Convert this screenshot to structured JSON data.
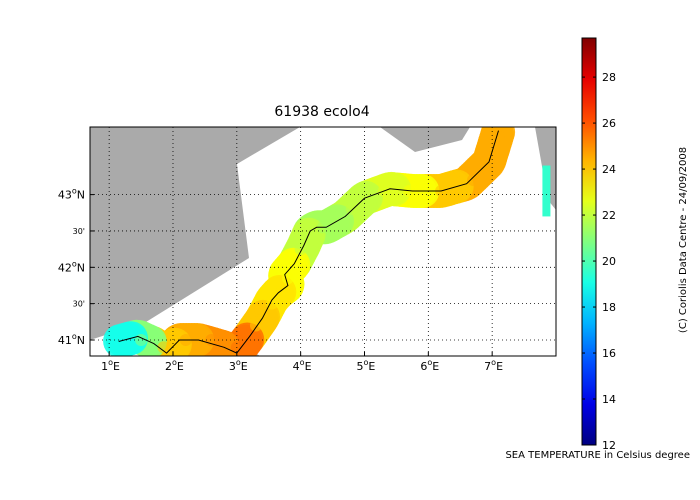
{
  "map": {
    "title": "61938 ecolo4",
    "lon_range": [
      0.7,
      8.0
    ],
    "lat_range": [
      40.78,
      43.93
    ],
    "lon_ticks": [
      {
        "value": 1,
        "deg": "1",
        "dir": "E"
      },
      {
        "value": 2,
        "deg": "2",
        "dir": "E"
      },
      {
        "value": 3,
        "deg": "3",
        "dir": "E"
      },
      {
        "value": 4,
        "deg": "4",
        "dir": "E"
      },
      {
        "value": 5,
        "deg": "5",
        "dir": "E"
      },
      {
        "value": 6,
        "deg": "6",
        "dir": "E"
      },
      {
        "value": 7,
        "deg": "7",
        "dir": "E"
      }
    ],
    "lat_ticks": [
      {
        "value": 43.0,
        "label": "43",
        "dir": "N",
        "minor": false
      },
      {
        "value": 42.5,
        "label": "30'",
        "dir": "",
        "minor": true
      },
      {
        "value": 42.0,
        "label": "42",
        "dir": "N",
        "minor": false
      },
      {
        "value": 41.5,
        "label": "30'",
        "dir": "",
        "minor": true
      },
      {
        "value": 41.0,
        "label": "41",
        "dir": "N",
        "minor": false
      }
    ],
    "colors": {
      "land": "#aaaaaa",
      "track": "#000000",
      "grid": "#000000"
    }
  },
  "colorbar": {
    "min": 12,
    "max": 29.7,
    "ticks": [
      "12",
      "14",
      "16",
      "18",
      "20",
      "22",
      "24",
      "26",
      "28"
    ],
    "tick_values": [
      12,
      14,
      16,
      18,
      20,
      22,
      24,
      26,
      28
    ],
    "colormap": "jet"
  },
  "credit": "(C) Coriolis Data Centre - 24/09/2008",
  "variable_label": "SEA TEMPERATURE in Celsius degree",
  "chart_data": {
    "type": "scatter",
    "title": "61938 ecolo4",
    "xlabel": "",
    "ylabel": "",
    "xlim": [
      0.7,
      8.0
    ],
    "ylim": [
      40.78,
      43.93
    ],
    "value_label": "SEA TEMPERATURE in Celsius degree",
    "track": [
      {
        "lon": 7.1,
        "lat": 43.88
      },
      {
        "lon": 6.95,
        "lat": 43.45
      },
      {
        "lon": 6.6,
        "lat": 43.15
      },
      {
        "lon": 6.2,
        "lat": 43.05
      },
      {
        "lon": 5.75,
        "lat": 43.05
      },
      {
        "lon": 5.4,
        "lat": 43.08
      },
      {
        "lon": 5.0,
        "lat": 42.95
      },
      {
        "lon": 4.7,
        "lat": 42.7
      },
      {
        "lon": 4.4,
        "lat": 42.55
      },
      {
        "lon": 4.25,
        "lat": 42.55
      },
      {
        "lon": 4.15,
        "lat": 42.5
      },
      {
        "lon": 4.05,
        "lat": 42.3
      },
      {
        "lon": 3.9,
        "lat": 42.05
      },
      {
        "lon": 3.75,
        "lat": 41.9
      },
      {
        "lon": 3.8,
        "lat": 41.75
      },
      {
        "lon": 3.65,
        "lat": 41.65
      },
      {
        "lon": 3.55,
        "lat": 41.55
      },
      {
        "lon": 3.4,
        "lat": 41.3
      },
      {
        "lon": 3.2,
        "lat": 41.05
      },
      {
        "lon": 3.0,
        "lat": 40.82
      },
      {
        "lon": 2.8,
        "lat": 40.9
      },
      {
        "lon": 2.4,
        "lat": 41.0
      },
      {
        "lon": 2.1,
        "lat": 41.0
      },
      {
        "lon": 1.9,
        "lat": 40.82
      },
      {
        "lon": 1.7,
        "lat": 40.95
      },
      {
        "lon": 1.45,
        "lat": 41.05
      },
      {
        "lon": 1.15,
        "lat": 40.98
      }
    ],
    "temperature": [
      {
        "lon": 7.1,
        "lat": 43.8,
        "value": 24.5
      },
      {
        "lon": 6.7,
        "lat": 43.2,
        "value": 24.5
      },
      {
        "lon": 6.2,
        "lat": 43.05,
        "value": 24.0
      },
      {
        "lon": 5.7,
        "lat": 43.05,
        "value": 23.0
      },
      {
        "lon": 5.3,
        "lat": 43.05,
        "value": 22.5
      },
      {
        "lon": 4.8,
        "lat": 42.8,
        "value": 22.0
      },
      {
        "lon": 4.35,
        "lat": 42.55,
        "value": 21.5
      },
      {
        "lon": 4.0,
        "lat": 42.25,
        "value": 22.0
      },
      {
        "lon": 3.8,
        "lat": 41.85,
        "value": 23.0
      },
      {
        "lon": 3.55,
        "lat": 41.5,
        "value": 23.5
      },
      {
        "lon": 3.3,
        "lat": 41.2,
        "value": 24.0
      },
      {
        "lon": 3.0,
        "lat": 40.9,
        "value": 25.5
      },
      {
        "lon": 2.6,
        "lat": 41.0,
        "value": 25.0
      },
      {
        "lon": 2.2,
        "lat": 41.0,
        "value": 24.5
      },
      {
        "lon": 1.85,
        "lat": 40.9,
        "value": 24.0
      },
      {
        "lon": 1.5,
        "lat": 41.0,
        "value": 21.0
      },
      {
        "lon": 1.2,
        "lat": 41.0,
        "value": 19.0
      },
      {
        "lon": 7.85,
        "lat": 43.1,
        "value": 19.5
      }
    ]
  }
}
